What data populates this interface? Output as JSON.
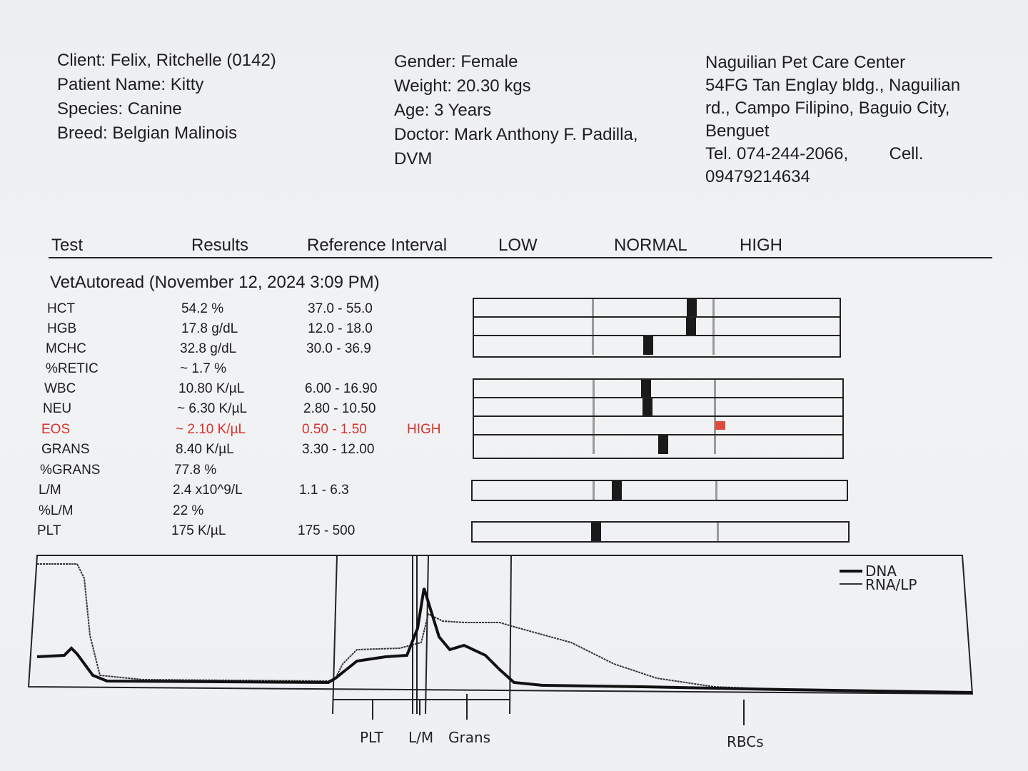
{
  "client": {
    "client": "Client: Felix, Ritchelle (0142)",
    "patient": "Patient Name: Kitty",
    "species": "Species: Canine",
    "breed": "Breed: Belgian Malinois"
  },
  "patient_info": {
    "gender": "Gender: Female",
    "weight": "Weight: 20.30 kgs",
    "age": "Age: 3 Years",
    "doctor": "Doctor: Mark Anthony F. Padilla,",
    "doctor_suffix": "DVM"
  },
  "clinic": {
    "name": "Naguilian Pet Care Center",
    "address1": "54FG Tan Englay bldg., Naguilian",
    "address2": "rd., Campo Filipino, Baguio City,",
    "address3": "Benguet",
    "tel": "Tel. 074-244-2066,",
    "cell_label": "Cell.",
    "cell": "09479214634"
  },
  "table_headers": {
    "test": "Test",
    "results": "Results",
    "reference": "Reference Interval",
    "low": "LOW",
    "normal": "NORMAL",
    "high": "HIGH"
  },
  "section_title": "VetAutoread (November 12, 2024 3:09 PM)",
  "results": [
    {
      "test": "HCT",
      "result": "54.2 %",
      "ref": "37.0 - 55.0",
      "flag": "",
      "position": 0.83
    },
    {
      "test": "HGB",
      "result": "17.8 g/dL",
      "ref": "12.0 - 18.0",
      "flag": "",
      "position": 0.82
    },
    {
      "test": "MCHC",
      "result": "32.8 g/dL",
      "ref": "30.0 - 36.9",
      "flag": "",
      "position": 0.47
    },
    {
      "test": "%RETIC",
      "result": "~ 1.7 %",
      "ref": "",
      "flag": "",
      "position": null
    },
    {
      "test": "WBC",
      "result": "10.80 K/µL",
      "ref": "6.00 - 16.90",
      "flag": "",
      "position": 0.44
    },
    {
      "test": "NEU",
      "result": "~ 6.30 K/µL",
      "ref": "2.80 - 10.50",
      "flag": "",
      "position": 0.45
    },
    {
      "test": "EOS",
      "result": "~ 2.10 K/µL",
      "ref": "0.50 - 1.50",
      "flag": "HIGH",
      "position": 1.05
    },
    {
      "test": "GRANS",
      "result": "8.40 K/µL",
      "ref": "3.30 - 12.00",
      "flag": "",
      "position": 0.58
    },
    {
      "test": "%GRANS",
      "result": "77.8 %",
      "ref": "",
      "flag": "",
      "position": null
    },
    {
      "test": "L/M",
      "result": "2.4 x10^9/L",
      "ref": "1.1 - 6.3",
      "flag": "",
      "position": 0.2
    },
    {
      "test": "%L/M",
      "result": "22 %",
      "ref": "",
      "flag": "",
      "position": null
    },
    {
      "test": "PLT",
      "result": "175 K/µL",
      "ref": "175 - 500",
      "flag": "",
      "position": 0.02
    }
  ],
  "histogram": {
    "legend": [
      "DNA",
      "RNA/LP"
    ],
    "labels": [
      "PLT",
      "L/M",
      "Grans",
      "RBCs"
    ]
  },
  "colors": {
    "high_flag": "#d8322c",
    "ink": "#1d1d1f"
  }
}
